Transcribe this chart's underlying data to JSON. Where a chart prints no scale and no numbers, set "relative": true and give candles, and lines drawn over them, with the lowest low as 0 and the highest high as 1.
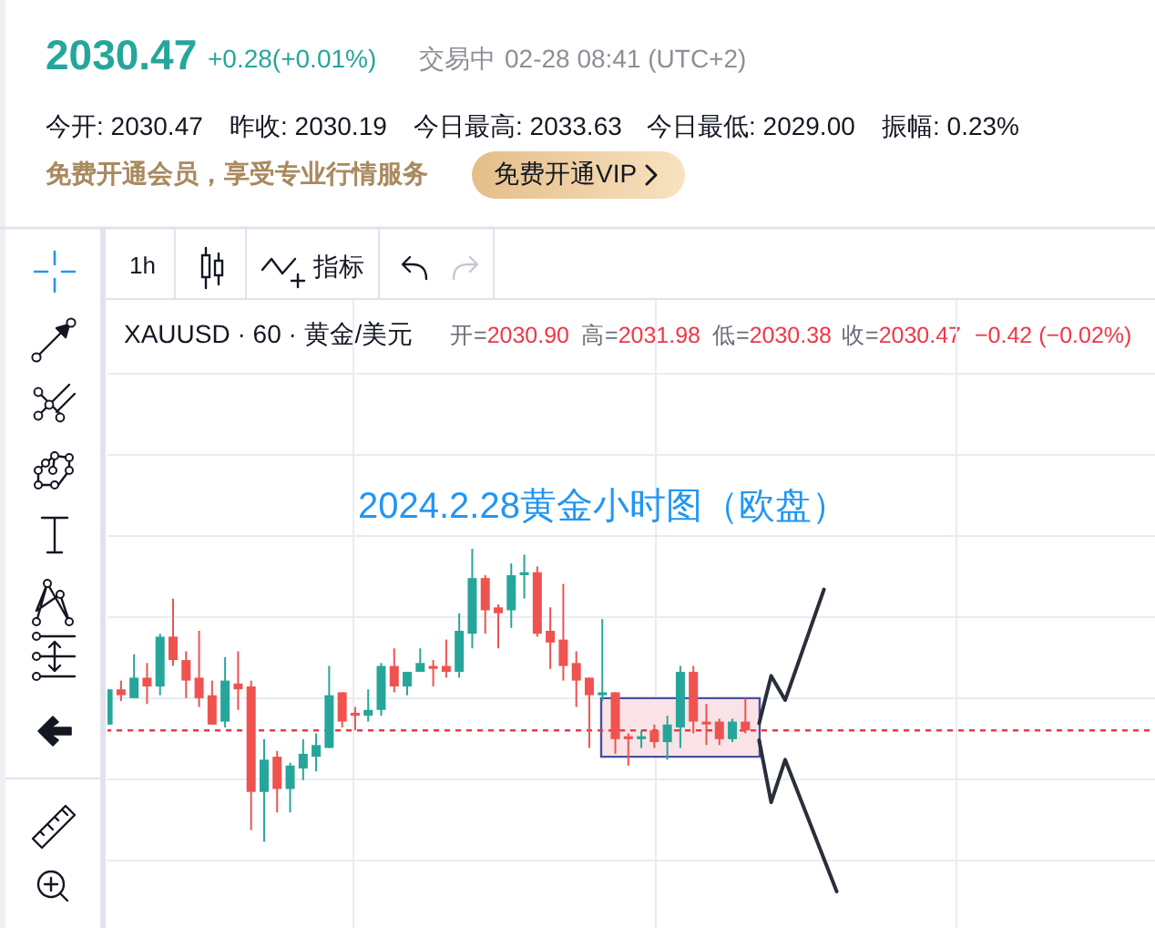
{
  "chart_data": {
    "type": "candlestick",
    "title": "2024.2.28黄金小时图（欧盘）",
    "relative": true,
    "grid": true,
    "annotations": [
      "2030.47",
      "+0.28(+0.01%)",
      "交易中",
      "02-28 08:41 (UTC+2)",
      "今开: 2030.47",
      "昨收: 2030.19",
      "今日最高: 2033.63",
      "今日最低: 2029.00",
      "振幅: 0.23%",
      "免费开通会员，享受专业行情服务",
      "免费开通VIP",
      "1h",
      "指标",
      "XAUUSD · 60 · 黄金/美元",
      "开=2030.90",
      "高=2031.98",
      "低=2030.38",
      "收=2030.47",
      "−0.42 (−0.02%)"
    ],
    "categories": [
      null,
      null,
      null,
      null,
      null,
      null,
      null,
      null,
      null,
      null,
      null,
      null,
      null,
      null,
      null,
      null,
      null,
      null,
      null,
      null,
      null,
      null,
      null,
      null,
      null,
      null,
      null,
      null,
      null,
      null,
      null,
      null,
      null,
      null,
      null,
      null,
      null,
      null,
      null,
      null,
      null,
      null,
      null,
      null,
      null,
      null,
      null,
      null,
      null,
      null
    ],
    "ohlc": [
      [
        0.4,
        0.52,
        0.4,
        0.52
      ],
      [
        0.52,
        0.55,
        0.48,
        0.5
      ],
      [
        0.49,
        0.64,
        0.49,
        0.56
      ],
      [
        0.56,
        0.61,
        0.47,
        0.53
      ],
      [
        0.53,
        0.71,
        0.5,
        0.7
      ],
      [
        0.7,
        0.83,
        0.6,
        0.62
      ],
      [
        0.62,
        0.65,
        0.49,
        0.55
      ],
      [
        0.56,
        0.72,
        0.46,
        0.49
      ],
      [
        0.5,
        0.55,
        0.4,
        0.4
      ],
      [
        0.41,
        0.63,
        0.39,
        0.55
      ],
      [
        0.54,
        0.65,
        0.45,
        0.52
      ],
      [
        0.53,
        0.55,
        0.04,
        0.17
      ],
      [
        0.17,
        0.35,
        0,
        0.28
      ],
      [
        0.29,
        0.31,
        0.1,
        0.18
      ],
      [
        0.18,
        0.27,
        0.1,
        0.26
      ],
      [
        0.25,
        0.35,
        0.21,
        0.3
      ],
      [
        0.29,
        0.37,
        0.24,
        0.33
      ],
      [
        0.32,
        0.6,
        0.32,
        0.5
      ],
      [
        0.51,
        0.51,
        0.39,
        0.41
      ],
      [
        0.44,
        0.46,
        0.38,
        0.43
      ],
      [
        0.43,
        0.52,
        0.41,
        0.45
      ],
      [
        0.45,
        0.61,
        0.43,
        0.6
      ],
      [
        0.6,
        0.66,
        0.51,
        0.53
      ],
      [
        0.53,
        0.58,
        0.5,
        0.58
      ],
      [
        0.58,
        0.66,
        0.58,
        0.61
      ],
      [
        0.6,
        0.62,
        0.53,
        0.59
      ],
      [
        0.6,
        0.69,
        0.56,
        0.58
      ],
      [
        0.58,
        0.78,
        0.56,
        0.72
      ],
      [
        0.71,
        1,
        0.66,
        0.9
      ],
      [
        0.9,
        0.91,
        0.71,
        0.79
      ],
      [
        0.8,
        0.81,
        0.66,
        0.78
      ],
      [
        0.79,
        0.95,
        0.73,
        0.91
      ],
      [
        0.91,
        0.98,
        0.83,
        0.92
      ],
      [
        0.92,
        0.94,
        0.7,
        0.71
      ],
      [
        0.72,
        0.8,
        0.59,
        0.68
      ],
      [
        0.69,
        0.88,
        0.55,
        0.6
      ],
      [
        0.61,
        0.65,
        0.46,
        0.55
      ],
      [
        0.56,
        0.56,
        0.32,
        0.5
      ],
      [
        0.5,
        0.76,
        0.48,
        0.51
      ],
      [
        0.51,
        0.51,
        0.3,
        0.35
      ],
      [
        0.36,
        0.37,
        0.26,
        0.35
      ],
      [
        0.35,
        0.38,
        0.32,
        0.36
      ],
      [
        0.38,
        0.4,
        0.32,
        0.34
      ],
      [
        0.34,
        0.43,
        0.28,
        0.4
      ],
      [
        0.39,
        0.6,
        0.32,
        0.58
      ],
      [
        0.58,
        0.6,
        0.37,
        0.41
      ],
      [
        0.41,
        0.47,
        0.33,
        0.4
      ],
      [
        0.41,
        0.42,
        0.33,
        0.35
      ],
      [
        0.35,
        0.42,
        0.34,
        0.41
      ],
      [
        0.41,
        0.49,
        0.37,
        0.38
      ]
    ],
    "colors": [
      "#26a69a",
      "#ef5350",
      "#26a69a",
      "#ef5350",
      "#26a69a",
      "#ef5350",
      "#ef5350",
      "#ef5350",
      "#ef5350",
      "#26a69a",
      "#ef5350",
      "#ef5350",
      "#26a69a",
      "#ef5350",
      "#26a69a",
      "#26a69a",
      "#26a69a",
      "#26a69a",
      "#ef5350",
      "#ef5350",
      "#26a69a",
      "#26a69a",
      "#ef5350",
      "#26a69a",
      "#26a69a",
      "#ef5350",
      "#ef5350",
      "#26a69a",
      "#26a69a",
      "#ef5350",
      "#ef5350",
      "#26a69a",
      "#26a69a",
      "#ef5350",
      "#ef5350",
      "#ef5350",
      "#ef5350",
      "#ef5350",
      "#26a69a",
      "#ef5350",
      "#ef5350",
      "#26a69a",
      "#ef5350",
      "#26a69a",
      "#26a69a",
      "#ef5350",
      "#ef5350",
      "#ef5350",
      "#26a69a",
      "#ef5350"
    ],
    "ref_lines": [
      {
        "axis": "y",
        "value": 0.38,
        "color": "#f23645",
        "line_style": "dashed"
      }
    ],
    "bands": [
      {
        "axis": "y",
        "from": 0.29,
        "to": 0.49,
        "color": "#f9e3e6"
      }
    ]
  }
}
